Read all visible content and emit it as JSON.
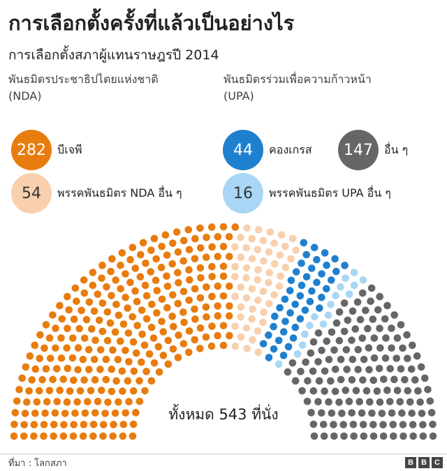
{
  "header": {
    "title": "การเลือกตั้งครั้งที่แล้วเป็นอย่างไร",
    "subtitle": "การเลือกตั้งสภาผู้แทนราษฎรปี 2014"
  },
  "groups": {
    "nda": {
      "name": "พันธมิตรประชาธิปไตยแห่งชาติ",
      "abbr": "(NDA)"
    },
    "upa": {
      "name": "พันธมิตรร่วมเพื่อความก้าวหน้า",
      "abbr": "(UPA)"
    }
  },
  "legend": [
    {
      "value": "282",
      "label": "บีเจพี",
      "color": "#e87c0e"
    },
    {
      "value": "54",
      "label": "พรรคพันธมิตร NDA อื่น ๆ",
      "color": "#f8d0ae"
    },
    {
      "value": "44",
      "label": "คองเกรส",
      "color": "#1f80cf"
    },
    {
      "value": "16",
      "label": "พรรคพันธมิตร UPA อื่น ๆ",
      "color": "#a8d6f4"
    },
    {
      "value": "147",
      "label": "อื่น ๆ",
      "color": "#666666"
    }
  ],
  "chart_data": {
    "type": "parliament",
    "total_seats": 543,
    "total_label": "ทั้งหมด 543 ที่นั่ง",
    "series": [
      {
        "name": "บีเจพี",
        "values": [
          282
        ],
        "color": "#e87c0e"
      },
      {
        "name": "พรรคพันธมิตร NDA อื่น ๆ",
        "values": [
          54
        ],
        "color": "#f8d0ae"
      },
      {
        "name": "คองเกรส",
        "values": [
          44
        ],
        "color": "#1f80cf"
      },
      {
        "name": "พรรคพันธมิตร UPA อื่น ๆ",
        "values": [
          16
        ],
        "color": "#a8d6f4"
      },
      {
        "name": "อื่น ๆ",
        "values": [
          147
        ],
        "color": "#666666"
      }
    ]
  },
  "footer": {
    "source": "ที่มา : โลกสภา",
    "logo_letters": [
      "B",
      "B",
      "C"
    ]
  }
}
